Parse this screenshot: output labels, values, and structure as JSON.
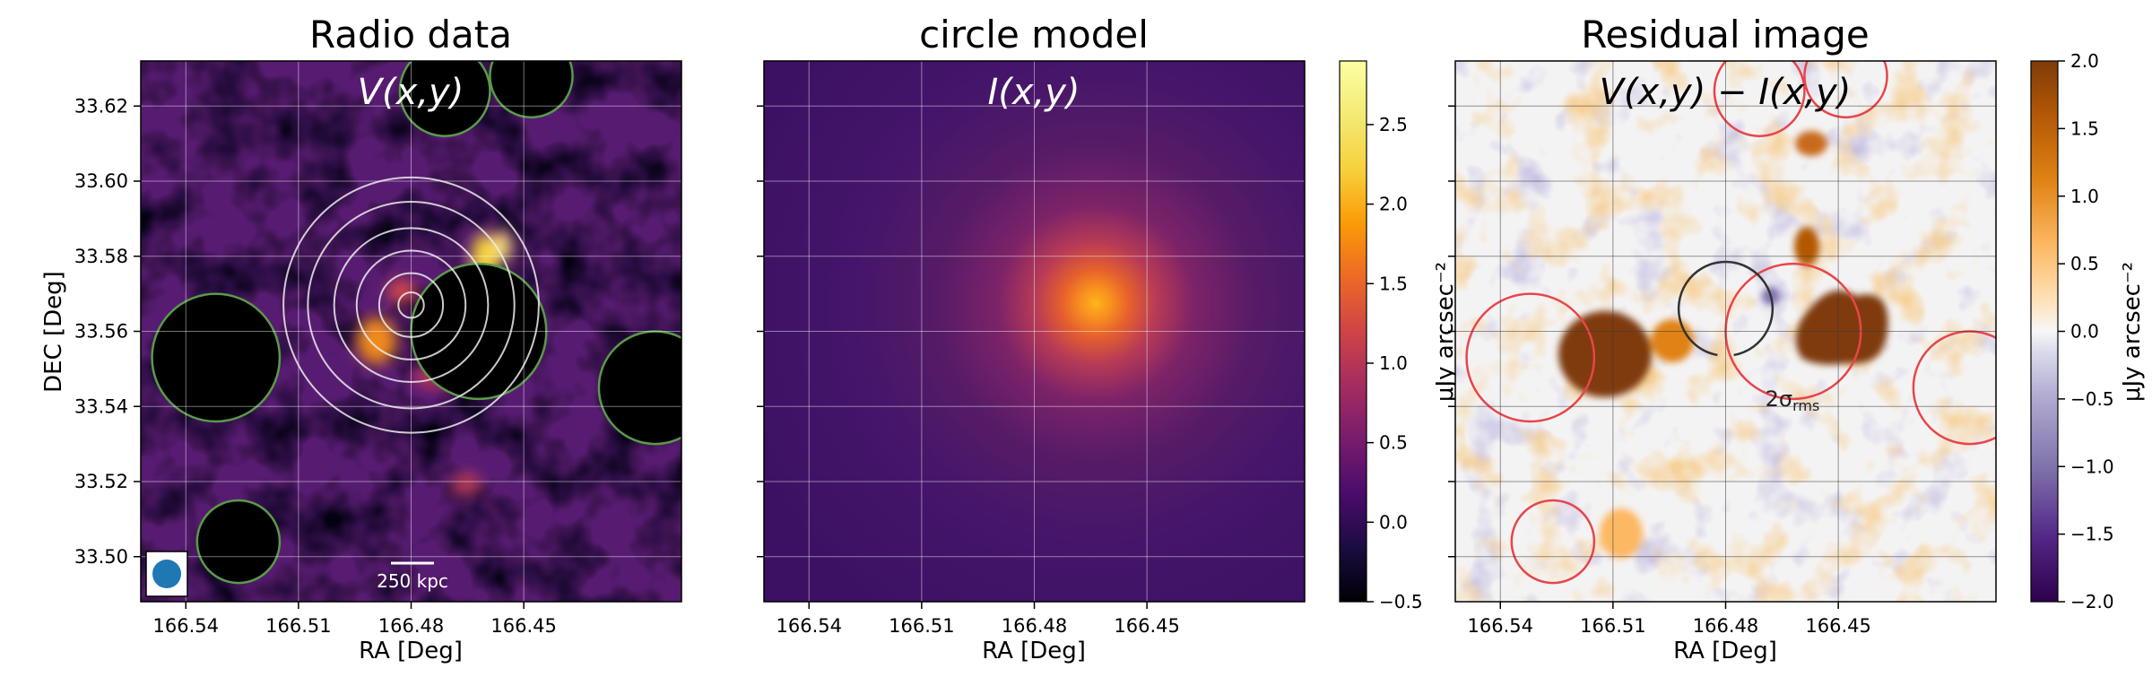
{
  "panels": [
    {
      "title": "Radio data",
      "formula": "V(x,y)",
      "xlabel": "RA [Deg]",
      "ylabel": "DEC [Deg]",
      "scalebar_label": "250 kpc"
    },
    {
      "title": "circle model",
      "formula": "I(x,y)",
      "xlabel": "RA [Deg]"
    },
    {
      "title": "Residual image",
      "formula": "V(x,y) − I(x,y)",
      "xlabel": "RA [Deg]",
      "annotation": "2σ",
      "annotation_sub": "rms"
    }
  ],
  "colorbars": [
    {
      "label": "μJy arcsec⁻²",
      "colormap": "inferno",
      "ticks": [
        "−0.5",
        "0.0",
        "0.5",
        "1.0",
        "1.5",
        "2.0",
        "2.5"
      ],
      "tick_values": [
        -0.5,
        0.0,
        0.5,
        1.0,
        1.5,
        2.0,
        2.5
      ],
      "range": [
        -0.5,
        2.9
      ]
    },
    {
      "label": "μJy arcsec⁻²",
      "colormap": "PuOr_r",
      "ticks": [
        "−2.0",
        "−1.5",
        "−1.0",
        "−0.5",
        "0.0",
        "0.5",
        "1.0",
        "1.5",
        "2.0"
      ],
      "tick_values": [
        -2.0,
        -1.5,
        -1.0,
        -0.5,
        0.0,
        0.5,
        1.0,
        1.5,
        2.0
      ],
      "range": [
        -2.0,
        2.0
      ]
    }
  ],
  "chart_data": {
    "type": "heatmap",
    "x_axis": {
      "label": "RA [Deg]",
      "ticks": [
        "166.54",
        "166.51",
        "166.48",
        "166.45"
      ],
      "tick_values": [
        166.54,
        166.51,
        166.48,
        166.45
      ],
      "range": [
        166.552,
        166.408
      ],
      "inverted": true
    },
    "y_axis": {
      "label": "DEC [Deg]",
      "ticks": [
        "33.50",
        "33.52",
        "33.54",
        "33.56",
        "33.58",
        "33.60",
        "33.62"
      ],
      "tick_values": [
        33.5,
        33.52,
        33.54,
        33.56,
        33.58,
        33.6,
        33.62
      ],
      "range": [
        33.488,
        33.632
      ]
    },
    "grid": true,
    "center": {
      "ra": 166.48,
      "dec": 33.567
    },
    "masked_sources": [
      {
        "ra": 166.471,
        "dec": 33.624,
        "r": 0.012
      },
      {
        "ra": 166.448,
        "dec": 33.628,
        "r": 0.011
      },
      {
        "ra": 166.462,
        "dec": 33.56,
        "r": 0.018
      },
      {
        "ra": 166.532,
        "dec": 33.553,
        "r": 0.017
      },
      {
        "ra": 166.415,
        "dec": 33.545,
        "r": 0.015
      },
      {
        "ra": 166.526,
        "dec": 33.504,
        "r": 0.011
      }
    ],
    "concentric_circle_radii_deg": [
      0.0034,
      0.0085,
      0.0145,
      0.0205,
      0.0275,
      0.034
    ],
    "model_peak": 2.7,
    "rms_circle": {
      "ra": 166.48,
      "dec": 33.566,
      "r": 0.0125
    }
  }
}
